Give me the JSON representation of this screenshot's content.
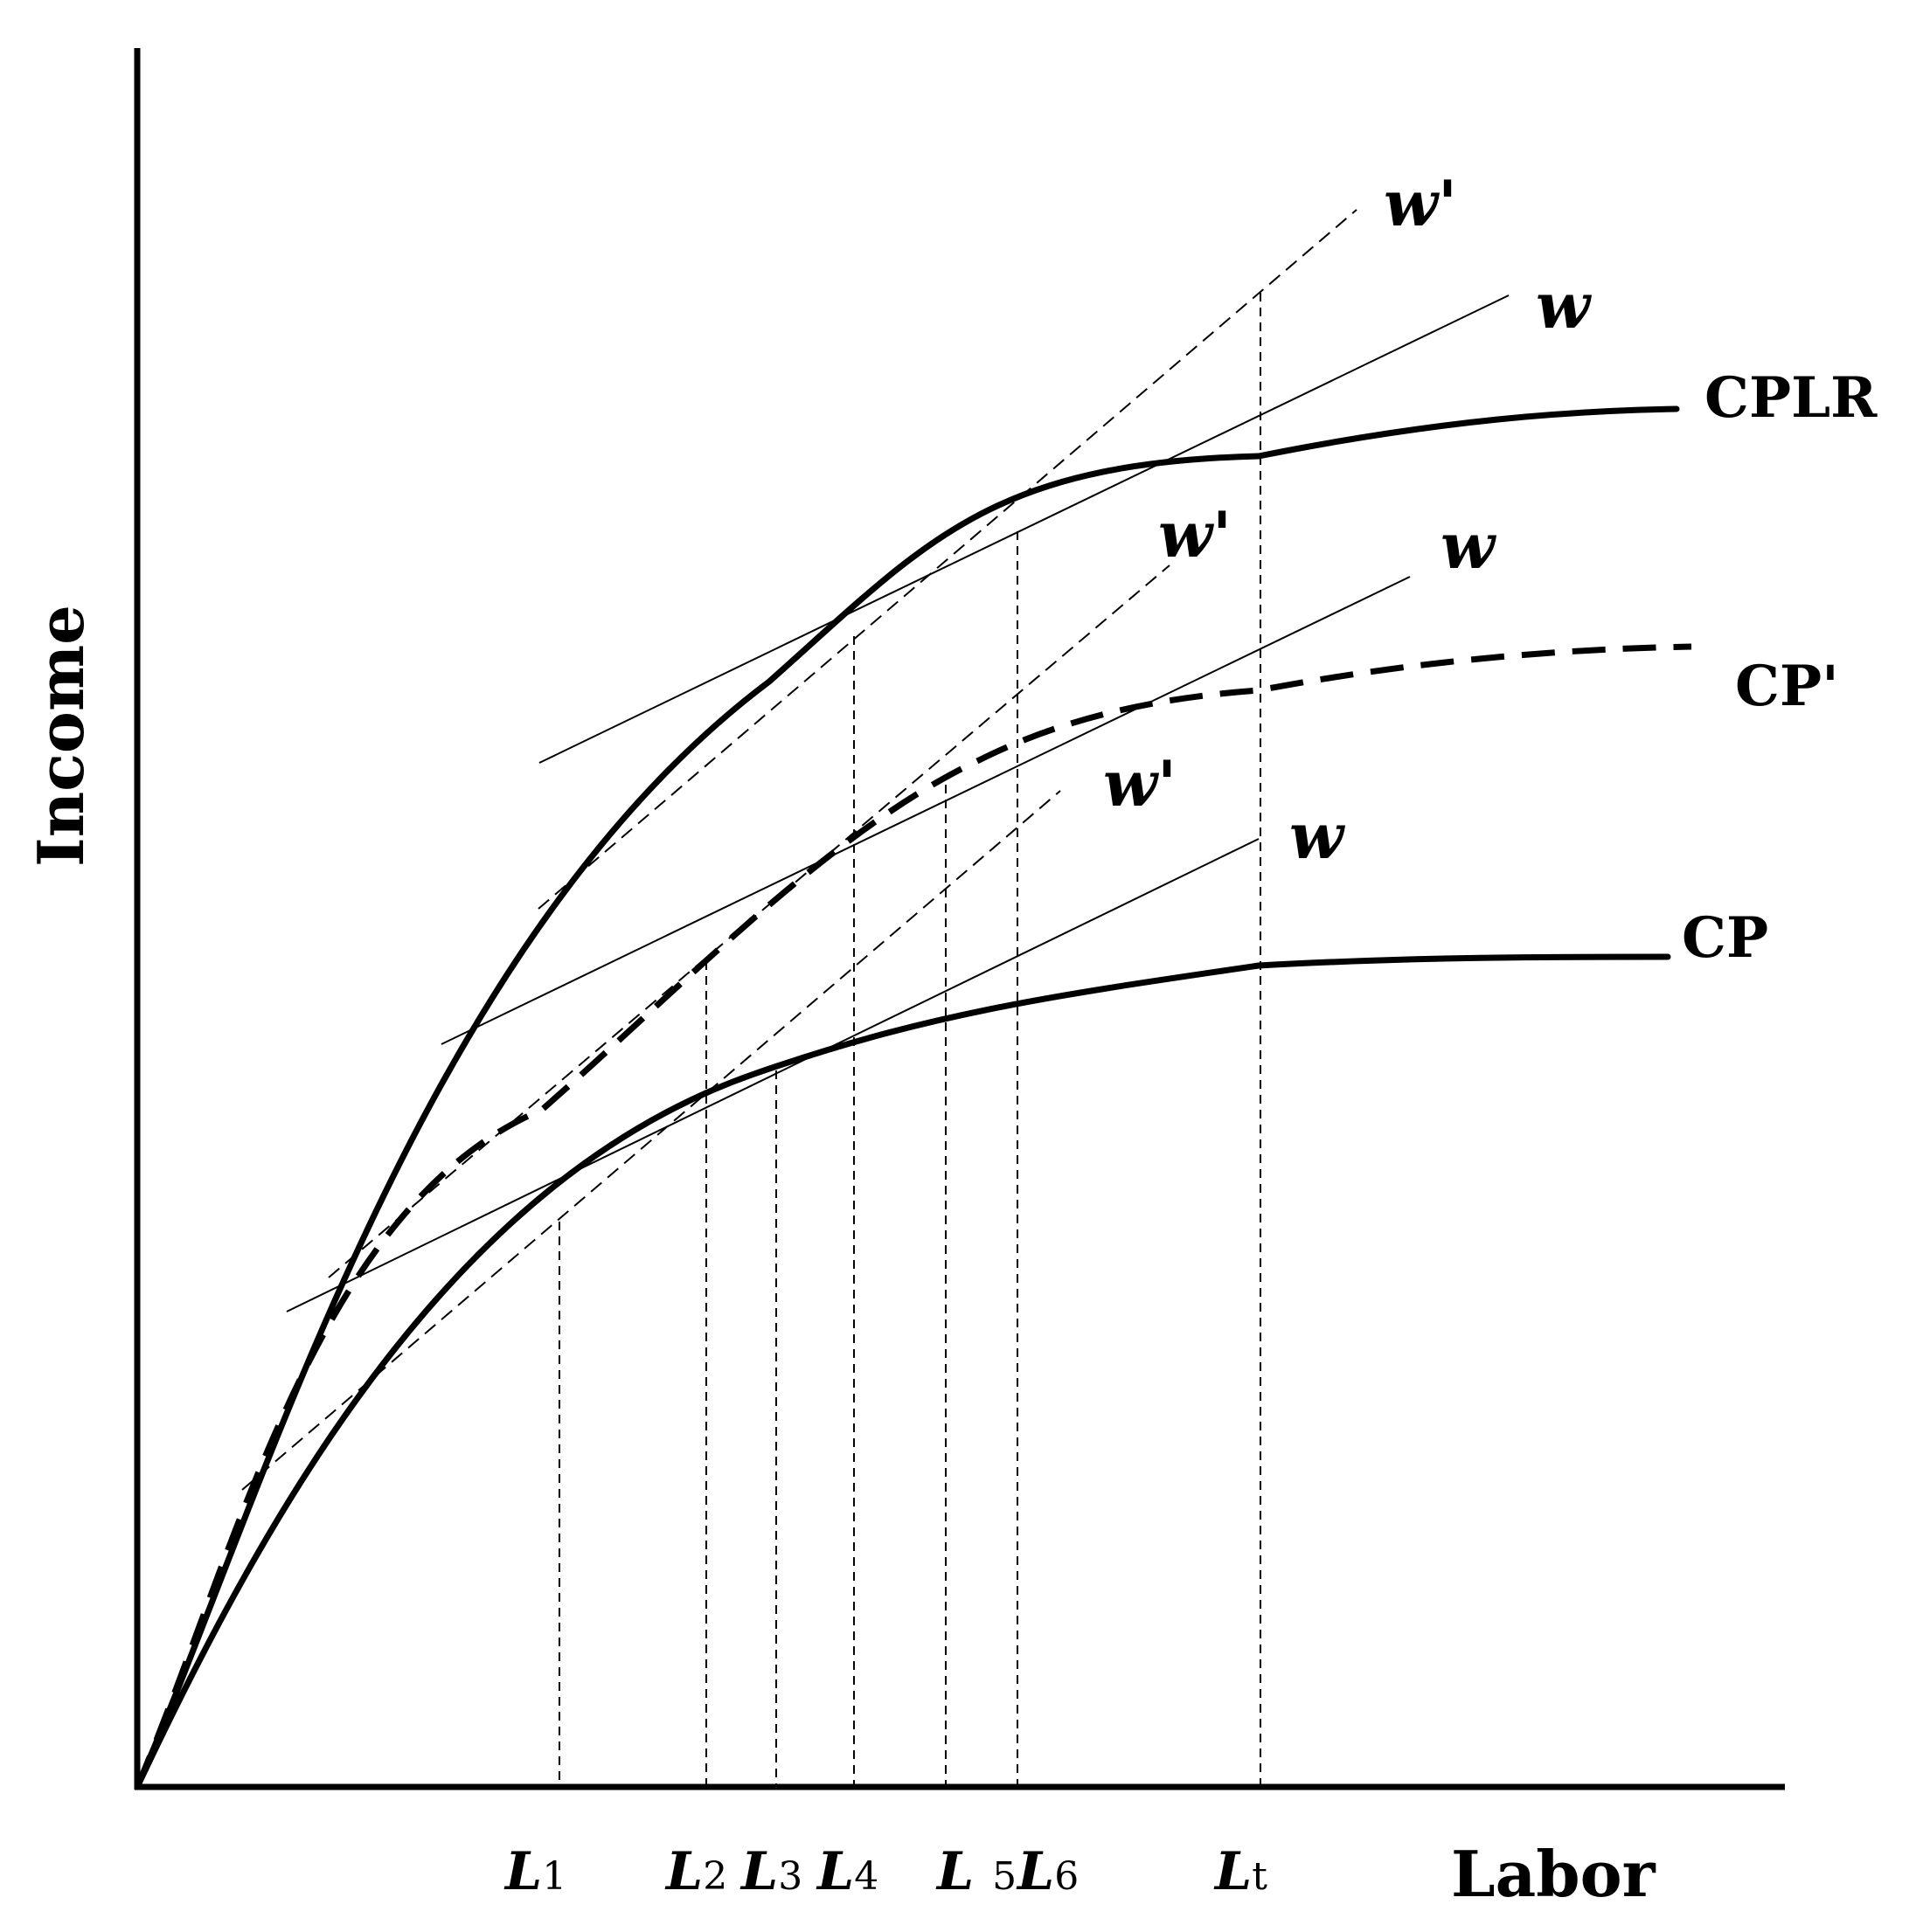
{
  "axes": {
    "y_title": "Income",
    "x_title": "Labor"
  },
  "curves": {
    "cplr": "CPLR",
    "cp_prime": "CP'",
    "cp": "CP"
  },
  "wage_lines": {
    "upper_w_prime": "w'",
    "upper_w": "w",
    "middle_w_prime": "w'",
    "middle_w": "w",
    "lower_w_prime": "w'",
    "lower_w": "w"
  },
  "ticks": [
    {
      "main": "L",
      "sub": "1"
    },
    {
      "main": "L",
      "sub": "2"
    },
    {
      "main": "L",
      "sub": "3"
    },
    {
      "main": "L",
      "sub": "4"
    },
    {
      "main": "L ",
      "sub": "5"
    },
    {
      "main": "L",
      "sub": "6"
    },
    {
      "main": "L",
      "sub": "t"
    }
  ]
}
